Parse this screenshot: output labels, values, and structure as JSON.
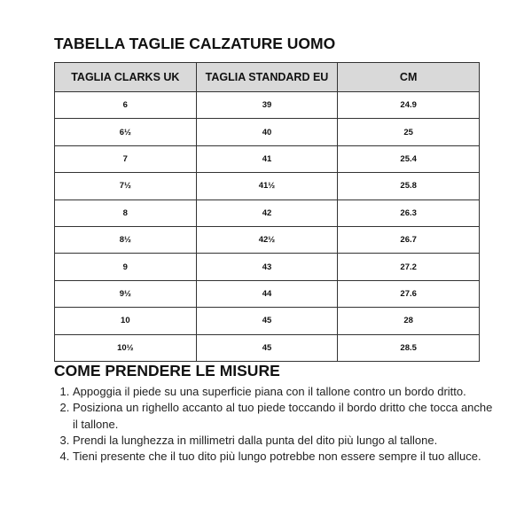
{
  "title": "TABELLA TAGLIE CALZATURE UOMO",
  "table": {
    "headers": [
      "TAGLIA CLARKS UK",
      "TAGLIA STANDARD EU",
      "CM"
    ],
    "rows": [
      [
        "6",
        "39",
        "24.9"
      ],
      [
        "6½",
        "40",
        "25"
      ],
      [
        "7",
        "41",
        "25.4"
      ],
      [
        "7½",
        "41½",
        "25.8"
      ],
      [
        "8",
        "42",
        "26.3"
      ],
      [
        "8½",
        "42½",
        "26.7"
      ],
      [
        "9",
        "43",
        "27.2"
      ],
      [
        "9½",
        "44",
        "27.6"
      ],
      [
        "10",
        "45",
        "28"
      ],
      [
        "10½",
        "45",
        "28.5"
      ]
    ]
  },
  "instructions": {
    "title": "COME PRENDERE LE MISURE",
    "steps": [
      "Appoggia il piede su una superficie piana con il tallone contro un bordo dritto.",
      "Posiziona un righello accanto al tuo piede toccando il bordo dritto che tocca anche il tallone.",
      "Prendi la lunghezza in millimetri dalla punta del dito più lungo al tallone.",
      "Tieni presente che il tuo dito più lungo potrebbe non essere sempre il tuo alluce."
    ]
  }
}
